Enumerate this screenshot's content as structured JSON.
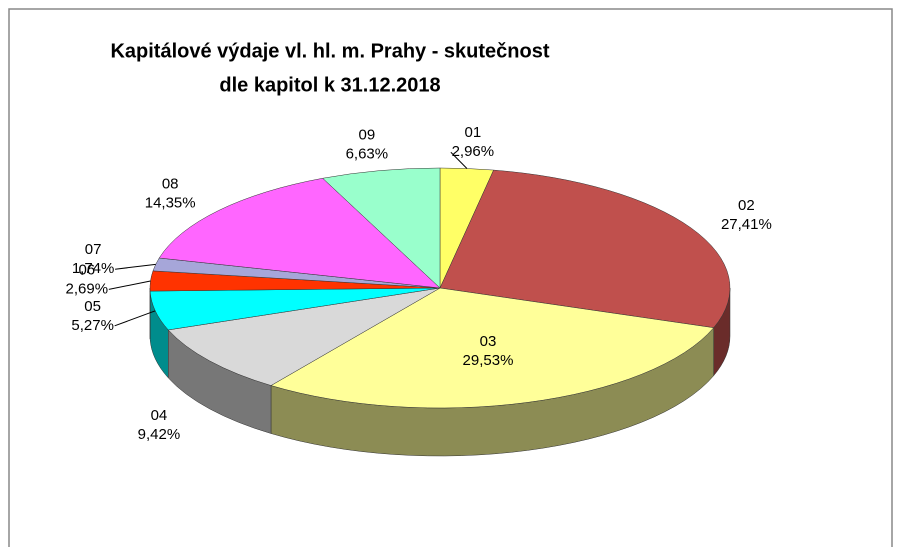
{
  "chart_data": {
    "type": "pie",
    "title": [
      "Kapitálové výdaje vl. hl. m. Prahy - skutečnost",
      "dle kapitol k 31.12.2018"
    ],
    "categories": [
      "01",
      "02",
      "03",
      "04",
      "05",
      "06",
      "07",
      "08",
      "09"
    ],
    "values": [
      2.96,
      27.41,
      29.53,
      9.42,
      5.27,
      2.69,
      1.74,
      14.35,
      6.63
    ],
    "value_labels": [
      "2,96%",
      "27,41%",
      "29,53%",
      "9,42%",
      "5,27%",
      "2,69%",
      "1,74%",
      "14,35%",
      "6,63%"
    ],
    "colors": [
      "#ffff66",
      "#c0504d",
      "#ffff99",
      "#d9d9d9",
      "#00ffff",
      "#ff3300",
      "#a6a6d9",
      "#ff66ff",
      "#99ffcc"
    ]
  }
}
